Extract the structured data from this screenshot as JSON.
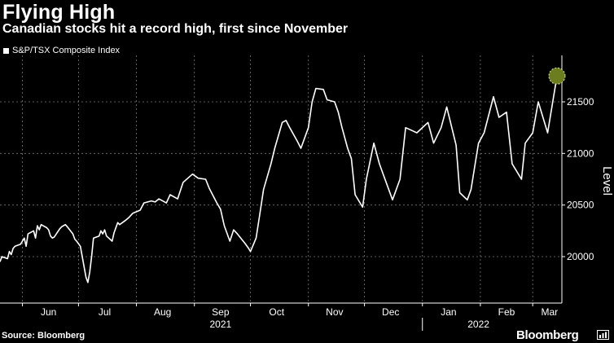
{
  "header": {
    "title": "Flying High",
    "subtitle": "Canadian stocks hit a record high, first since November"
  },
  "footer": {
    "source": "Source: Bloomberg",
    "brand": "Bloomberg"
  },
  "colors": {
    "background": "#000000",
    "line": "#ffffff",
    "grid": "#7a7a7a",
    "highlight_dot": "#6b7d1e"
  },
  "chart_data": {
    "type": "line",
    "title": "Flying High",
    "subtitle": "Canadian stocks hit a record high, first since November",
    "ylabel": "Level",
    "legend_position": "top-left",
    "grid": true,
    "ylim": [
      19550,
      21950
    ],
    "yticks": [
      20000,
      20500,
      21000,
      21500
    ],
    "xlim": [
      "2021-05-20",
      "2022-03-14"
    ],
    "month_ticks": [
      "Jun",
      "Jul",
      "Aug",
      "Sep",
      "Oct",
      "Nov",
      "Dec",
      "Jan",
      "Feb",
      "Mar"
    ],
    "month_dates": [
      "2021-06-15",
      "2021-07-15",
      "2021-08-15",
      "2021-09-15",
      "2021-10-15",
      "2021-11-15",
      "2021-12-15",
      "2022-01-15",
      "2022-02-15",
      "2022-03-10"
    ],
    "year_labels": [
      "2021",
      "2022"
    ],
    "year_label_dates": [
      "2021-09-15",
      "2022-01-31"
    ],
    "year_separator_date": "2022-01-01",
    "highlight_date": "2022-03-14",
    "series": [
      {
        "name": "S&P/TSX Composite Index",
        "x": [
          "2021-05-20",
          "2021-05-21",
          "2021-05-24",
          "2021-05-25",
          "2021-05-26",
          "2021-05-27",
          "2021-05-28",
          "2021-05-31",
          "2021-06-01",
          "2021-06-02",
          "2021-06-03",
          "2021-06-04",
          "2021-06-07",
          "2021-06-08",
          "2021-06-09",
          "2021-06-10",
          "2021-06-11",
          "2021-06-14",
          "2021-06-15",
          "2021-06-16",
          "2021-06-17",
          "2021-06-18",
          "2021-06-21",
          "2021-06-22",
          "2021-06-23",
          "2021-06-24",
          "2021-06-25",
          "2021-06-28",
          "2021-06-29",
          "2021-06-30",
          "2021-07-02",
          "2021-07-05",
          "2021-07-06",
          "2021-07-07",
          "2021-07-08",
          "2021-07-09",
          "2021-07-12",
          "2021-07-13",
          "2021-07-14",
          "2021-07-15",
          "2021-07-16",
          "2021-07-19",
          "2021-07-20",
          "2021-07-21",
          "2021-07-22",
          "2021-07-23",
          "2021-07-26",
          "2021-07-28",
          "2021-07-30",
          "2021-08-03",
          "2021-08-05",
          "2021-08-09",
          "2021-08-11",
          "2021-08-13",
          "2021-08-17",
          "2021-08-19",
          "2021-08-23",
          "2021-08-26",
          "2021-08-31",
          "2021-09-03",
          "2021-09-07",
          "2021-09-09",
          "2021-09-13",
          "2021-09-15",
          "2021-09-17",
          "2021-09-20",
          "2021-09-22",
          "2021-09-24",
          "2021-09-28",
          "2021-09-30",
          "2021-10-01",
          "2021-10-04",
          "2021-10-06",
          "2021-10-08",
          "2021-10-12",
          "2021-10-14",
          "2021-10-18",
          "2021-10-20",
          "2021-10-22",
          "2021-10-26",
          "2021-10-28",
          "2021-11-01",
          "2021-11-03",
          "2021-11-05",
          "2021-11-09",
          "2021-11-11",
          "2021-11-15",
          "2021-11-17",
          "2021-11-19",
          "2021-11-22",
          "2021-11-24",
          "2021-11-26",
          "2021-11-30",
          "2021-12-02",
          "2021-12-06",
          "2021-12-09",
          "2021-12-13",
          "2021-12-16",
          "2021-12-20",
          "2021-12-23",
          "2021-12-29",
          "2022-01-04",
          "2022-01-07",
          "2022-01-11",
          "2022-01-14",
          "2022-01-19",
          "2022-01-21",
          "2022-01-25",
          "2022-01-27",
          "2022-01-31",
          "2022-02-03",
          "2022-02-08",
          "2022-02-11",
          "2022-02-15",
          "2022-02-18",
          "2022-02-23",
          "2022-02-25",
          "2022-03-01",
          "2022-03-04",
          "2022-03-09",
          "2022-03-14"
        ],
        "values": [
          19950,
          20000,
          19980,
          20050,
          20020,
          20080,
          20100,
          20120,
          20150,
          20180,
          20100,
          20220,
          20250,
          20180,
          20300,
          20260,
          20310,
          20280,
          20260,
          20200,
          20180,
          20190,
          20270,
          20290,
          20300,
          20310,
          20290,
          20220,
          20170,
          20150,
          20100,
          19800,
          19750,
          19850,
          20000,
          20180,
          20200,
          20250,
          20220,
          20260,
          20200,
          20150,
          20230,
          20280,
          20330,
          20310,
          20350,
          20380,
          20420,
          20450,
          20520,
          20540,
          20530,
          20560,
          20520,
          20600,
          20560,
          20720,
          20800,
          20760,
          20750,
          20660,
          20520,
          20460,
          20300,
          20150,
          20260,
          20220,
          20130,
          20080,
          20050,
          20180,
          20410,
          20650,
          20900,
          21050,
          21300,
          21320,
          21250,
          21120,
          21050,
          21250,
          21500,
          21630,
          21620,
          21520,
          21500,
          21400,
          21250,
          21050,
          20950,
          20600,
          20480,
          20750,
          21100,
          20900,
          20700,
          20550,
          20750,
          21250,
          21200,
          21300,
          21100,
          21250,
          21450,
          21080,
          20620,
          20550,
          20650,
          21100,
          21200,
          21550,
          21350,
          21400,
          20900,
          20750,
          21100,
          21200,
          21500,
          21200,
          21750
        ]
      }
    ]
  }
}
